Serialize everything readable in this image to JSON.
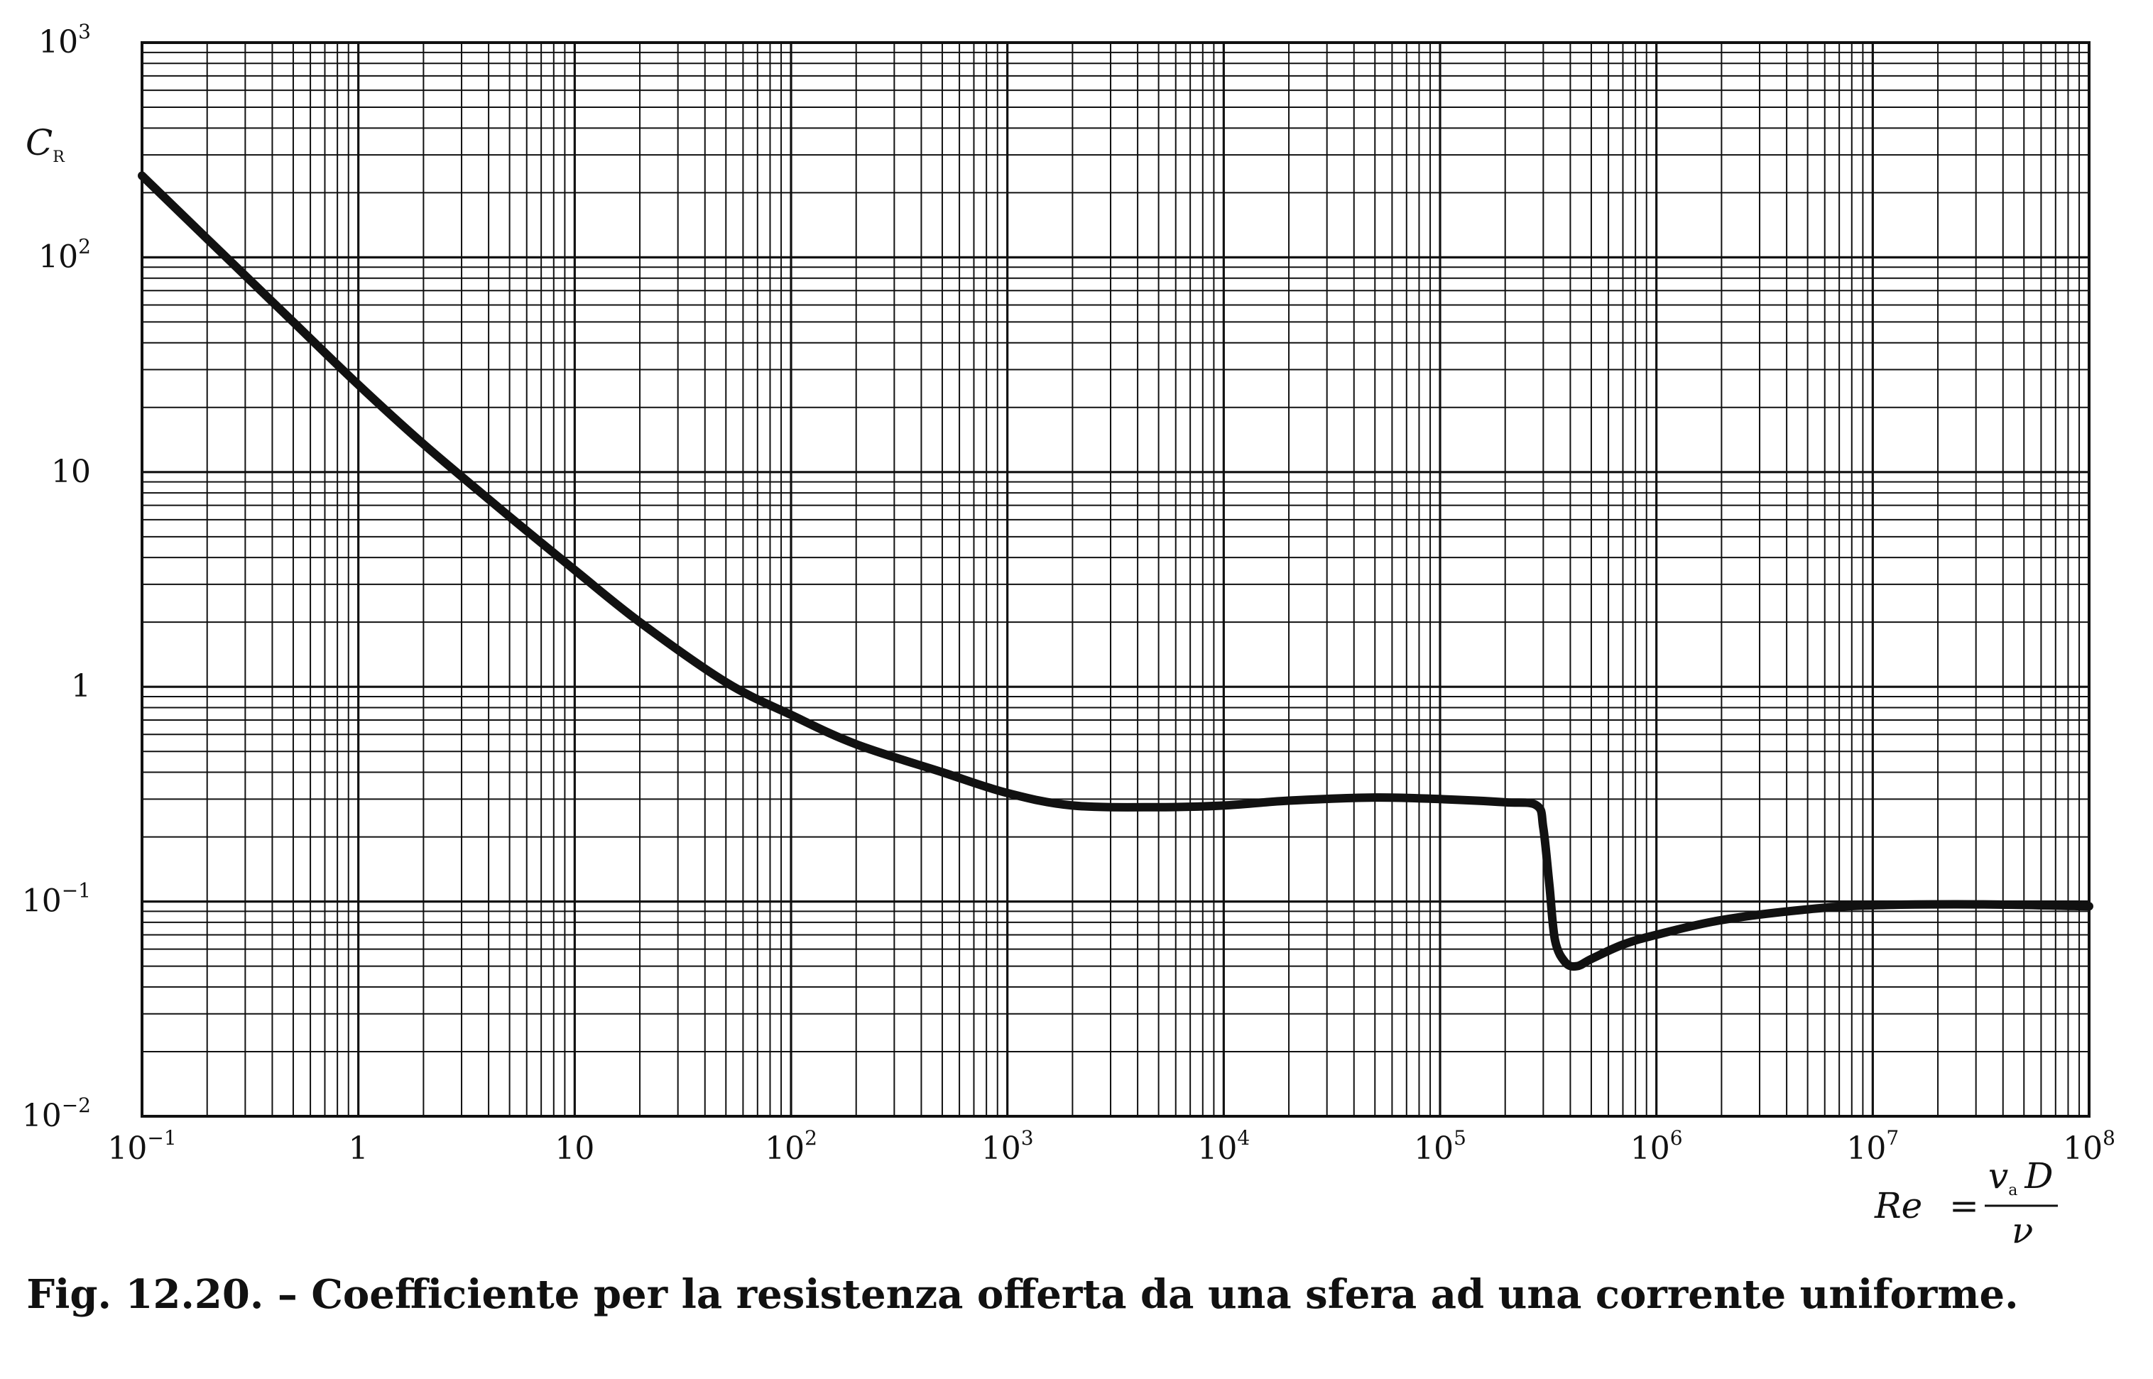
{
  "caption": "Fig. 12.20. – Coefficiente per la resistenza offerta da una sfera ad una corrente uniforme.",
  "chart_data": {
    "type": "line",
    "x_scale": "log",
    "y_scale": "log",
    "xlim": [
      0.1,
      100000000
    ],
    "ylim": [
      0.01,
      1000
    ],
    "grid": true,
    "ylabel": {
      "main": "C",
      "subscript": "R"
    },
    "xlabel": {
      "lhs": "Re",
      "equals": "=",
      "numerator": "v",
      "numerator_subscript": "a",
      "numerator_tail": "D",
      "denominator": "ν"
    },
    "x_tick_labels": [
      {
        "value": 0.1,
        "base": "10",
        "exp": "−1"
      },
      {
        "value": 1,
        "base": "1",
        "exp": ""
      },
      {
        "value": 10,
        "base": "10",
        "exp": ""
      },
      {
        "value": 100,
        "base": "10",
        "exp": "2"
      },
      {
        "value": 1000,
        "base": "10",
        "exp": "3"
      },
      {
        "value": 10000,
        "base": "10",
        "exp": "4"
      },
      {
        "value": 100000,
        "base": "10",
        "exp": "5"
      },
      {
        "value": 1000000,
        "base": "10",
        "exp": "6"
      },
      {
        "value": 10000000,
        "base": "10",
        "exp": "7"
      },
      {
        "value": 100000000,
        "base": "10",
        "exp": "8"
      }
    ],
    "y_tick_labels": [
      {
        "value": 1000,
        "base": "10",
        "exp": "3"
      },
      {
        "value": 100,
        "base": "10",
        "exp": "2"
      },
      {
        "value": 10,
        "base": "10",
        "exp": ""
      },
      {
        "value": 1,
        "base": "1",
        "exp": ""
      },
      {
        "value": 0.1,
        "base": "10",
        "exp": "−1"
      },
      {
        "value": 0.01,
        "base": "10",
        "exp": "−2"
      }
    ],
    "series": [
      {
        "points": [
          [
            0.1,
            240
          ],
          [
            0.2,
            122
          ],
          [
            0.5,
            50
          ],
          [
            1,
            25.5
          ],
          [
            2,
            13.5
          ],
          [
            5,
            6.2
          ],
          [
            10,
            3.5
          ],
          [
            20,
            2.0
          ],
          [
            50,
            1.05
          ],
          [
            100,
            0.74
          ],
          [
            200,
            0.54
          ],
          [
            500,
            0.4
          ],
          [
            1000,
            0.32
          ],
          [
            2000,
            0.28
          ],
          [
            5000,
            0.275
          ],
          [
            10000,
            0.28
          ],
          [
            20000,
            0.295
          ],
          [
            50000,
            0.305
          ],
          [
            100000,
            0.3
          ],
          [
            200000,
            0.29
          ],
          [
            280000,
            0.28
          ],
          [
            300000,
            0.22
          ],
          [
            320000,
            0.12
          ],
          [
            340000,
            0.066
          ],
          [
            380000,
            0.052
          ],
          [
            430000,
            0.05
          ],
          [
            500000,
            0.054
          ],
          [
            700000,
            0.063
          ],
          [
            1000000,
            0.07
          ],
          [
            2000000,
            0.082
          ],
          [
            5000000,
            0.092
          ],
          [
            10000000,
            0.096
          ],
          [
            30000000,
            0.097
          ],
          [
            100000000,
            0.095
          ]
        ]
      }
    ]
  }
}
